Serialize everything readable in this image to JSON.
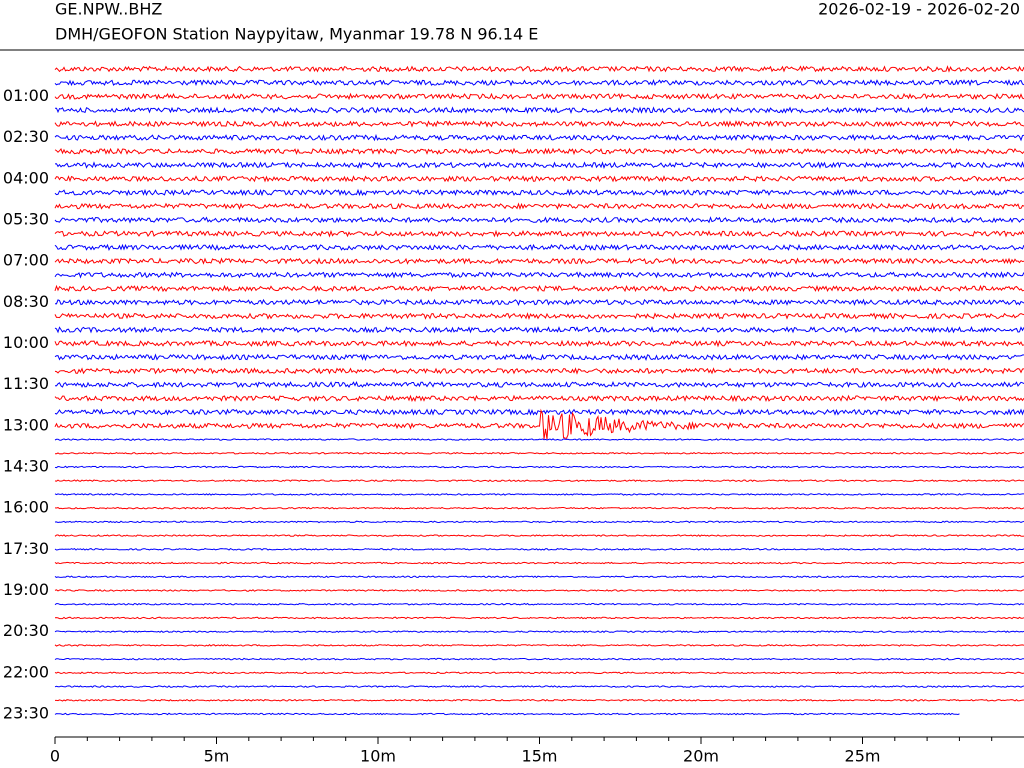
{
  "chart_data": {
    "type": "helicorder",
    "title": "GE.NPW..BHZ",
    "subtitle": "DMH/GEOFON Station Naypyitaw, Myanmar  19.78 N 96.14 E",
    "date_range": "2026-02-19 - 2026-02-20",
    "trace_colors": [
      "#ff0000",
      "#0000ff"
    ],
    "xlim": [
      0,
      30
    ],
    "xticks": [
      0,
      {
        "value": 5,
        "label": "5m"
      },
      {
        "value": 10,
        "label": "10m"
      },
      {
        "value": 15,
        "label": "15m"
      },
      {
        "value": 20,
        "label": "20m"
      },
      {
        "value": 25,
        "label": "25m"
      }
    ],
    "ylim": [
      0,
      23.5
    ],
    "yticks": [
      {
        "value": 1,
        "label": "01:00"
      },
      {
        "value": 2.5,
        "label": "02:30"
      },
      {
        "value": 4,
        "label": "04:00"
      },
      {
        "value": 5.5,
        "label": "05:30"
      },
      {
        "value": 7,
        "label": "07:00"
      },
      {
        "value": 8.5,
        "label": "08:30"
      },
      {
        "value": 10,
        "label": "10:00"
      },
      {
        "value": 11.5,
        "label": "11:30"
      },
      {
        "value": 13,
        "label": "13:00"
      },
      {
        "value": 14.5,
        "label": "14:30"
      },
      {
        "value": 16,
        "label": "16:00"
      },
      {
        "value": 17.5,
        "label": "17:30"
      },
      {
        "value": 19,
        "label": "19:00"
      },
      {
        "value": 20.5,
        "label": "20:30"
      },
      {
        "value": 22,
        "label": "22:00"
      },
      {
        "value": 23.5,
        "label": "23:30"
      }
    ]
  }
}
